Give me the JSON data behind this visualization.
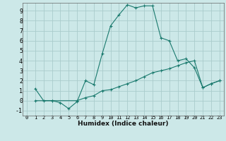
{
  "title": "",
  "xlabel": "Humidex (Indice chaleur)",
  "ylabel": "",
  "bg_color": "#cce8e8",
  "line_color": "#1a7a6e",
  "grid_color": "#aacccc",
  "xlim": [
    -0.5,
    23.5
  ],
  "ylim": [
    -1.5,
    9.8
  ],
  "xticks": [
    0,
    1,
    2,
    3,
    4,
    5,
    6,
    7,
    8,
    9,
    10,
    11,
    12,
    13,
    14,
    15,
    16,
    17,
    18,
    19,
    20,
    21,
    22,
    23
  ],
  "yticks": [
    -1,
    0,
    1,
    2,
    3,
    4,
    5,
    6,
    7,
    8,
    9
  ],
  "line1_x": [
    1,
    2,
    3,
    4,
    5,
    6,
    7,
    8,
    9,
    10,
    11,
    12,
    13,
    14,
    15,
    16,
    17,
    18,
    19,
    20,
    21,
    22,
    23
  ],
  "line1_y": [
    1.2,
    0.0,
    0.0,
    -0.2,
    -0.8,
    -0.1,
    2.0,
    1.6,
    4.7,
    7.5,
    8.6,
    9.6,
    9.3,
    9.5,
    9.5,
    6.3,
    6.0,
    4.0,
    4.2,
    3.3,
    1.3,
    1.7,
    2.0
  ],
  "line2_x": [
    1,
    3,
    6,
    7,
    8,
    9,
    10,
    11,
    12,
    13,
    14,
    15,
    16,
    17,
    18,
    19,
    20,
    21,
    22,
    23
  ],
  "line2_y": [
    0.0,
    0.0,
    0.0,
    0.3,
    0.5,
    1.0,
    1.1,
    1.4,
    1.7,
    2.0,
    2.4,
    2.8,
    3.0,
    3.2,
    3.5,
    3.8,
    4.0,
    1.3,
    1.7,
    2.0
  ]
}
